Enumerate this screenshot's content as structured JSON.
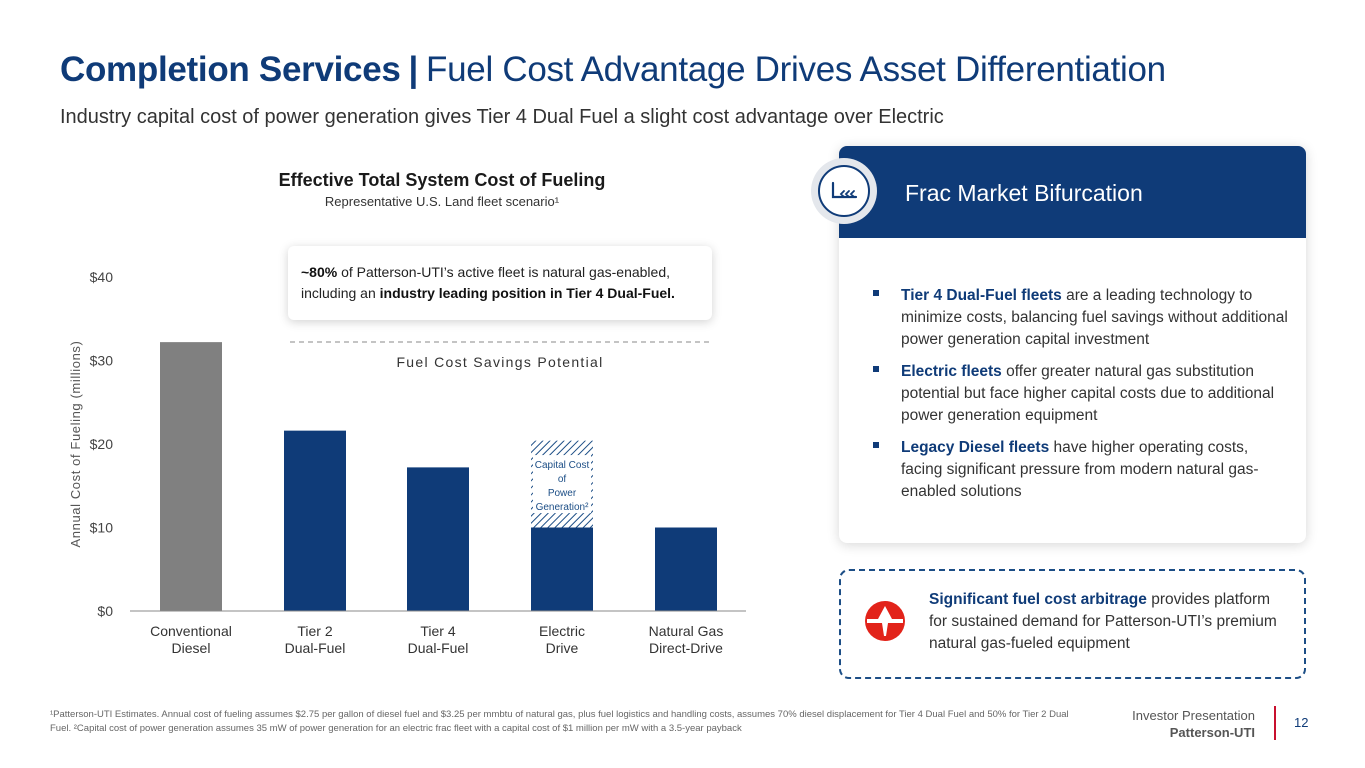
{
  "header": {
    "title_bold": "Completion Services",
    "title_sep": "|",
    "title_rest": "Fuel Cost Advantage Drives Asset Differentiation",
    "subtitle": "Industry capital cost of power generation gives Tier 4 Dual Fuel a slight cost advantage over Electric"
  },
  "chart": {
    "callout_pct": "~80%",
    "callout_mid": " of Patterson-UTI’s active fleet is natural gas-enabled, including an ",
    "callout_bold": "industry leading position in Tier 4 Dual-Fuel.",
    "savings_label": "Fuel Cost Savings Potential",
    "capital_label_lines": [
      "Capital Cost",
      "of",
      "Power",
      "Generation²"
    ]
  },
  "chart_data": {
    "type": "bar",
    "title": "Effective Total System Cost of Fueling",
    "subtitle": "Representative U.S. Land fleet scenario¹",
    "ylabel": "Annual Cost of Fueling (millions)",
    "xlabel": "",
    "ylim": [
      0,
      40
    ],
    "y_ticks": [
      0,
      10,
      20,
      30,
      40
    ],
    "y_tick_labels": [
      "$0",
      "$10",
      "$20",
      "$30",
      "$40"
    ],
    "categories": [
      [
        "Conventional",
        "Diesel"
      ],
      [
        "Tier 2",
        "Dual-Fuel"
      ],
      [
        "Tier 4",
        "Dual-Fuel"
      ],
      [
        "Electric",
        "Drive"
      ],
      [
        "Natural Gas",
        "Direct-Drive"
      ]
    ],
    "values": [
      32.2,
      21.6,
      17.2,
      10.0,
      10.0
    ],
    "stacked_capital_cost": [
      0,
      0,
      0,
      10.4,
      0
    ],
    "bar_colors": [
      "#808080",
      "#0f3b78",
      "#0f3b78",
      "#0f3b78",
      "#0f3b78"
    ]
  },
  "panel": {
    "title": "Frac Market Bifurcation",
    "icon": "frac-fleet-icon",
    "bullets": [
      {
        "bold": "Tier 4 Dual-Fuel fleets",
        "text": " are a leading technology to minimize costs, balancing fuel savings without additional power generation capital investment"
      },
      {
        "bold": "Electric fleets",
        "text": " offer greater natural gas substitution potential but face higher capital costs due to additional power generation equipment"
      },
      {
        "bold": "Legacy Diesel fleets",
        "text": " have higher operating costs, facing significant pressure from modern natural gas-enabled solutions"
      }
    ]
  },
  "arbitrage": {
    "bold": "Significant fuel cost arbitrage",
    "text": " provides platform for sustained demand for Patterson-UTI’s premium natural gas-fueled equipment",
    "logo": "patterson-uti-logo"
  },
  "footer": {
    "footnote": "¹Patterson-UTI Estimates. Annual cost of fueling assumes $2.75 per gallon of diesel fuel and $3.25 per mmbtu of natural gas, plus fuel logistics and handling costs, assumes 70% diesel displacement for Tier 4 Dual Fuel and 50% for Tier 2 Dual Fuel. ²Capital cost of power generation assumes 35 mW of power generation for an electric frac fleet with a capital cost of $1 million per mW with a 3.5-year payback",
    "label_line1": "Investor Presentation",
    "label_line2": "Patterson-UTI",
    "page_number": "12"
  },
  "colors": {
    "navy": "#0f3b78",
    "grey_bar": "#808080",
    "accent_red": "#c8102e"
  }
}
